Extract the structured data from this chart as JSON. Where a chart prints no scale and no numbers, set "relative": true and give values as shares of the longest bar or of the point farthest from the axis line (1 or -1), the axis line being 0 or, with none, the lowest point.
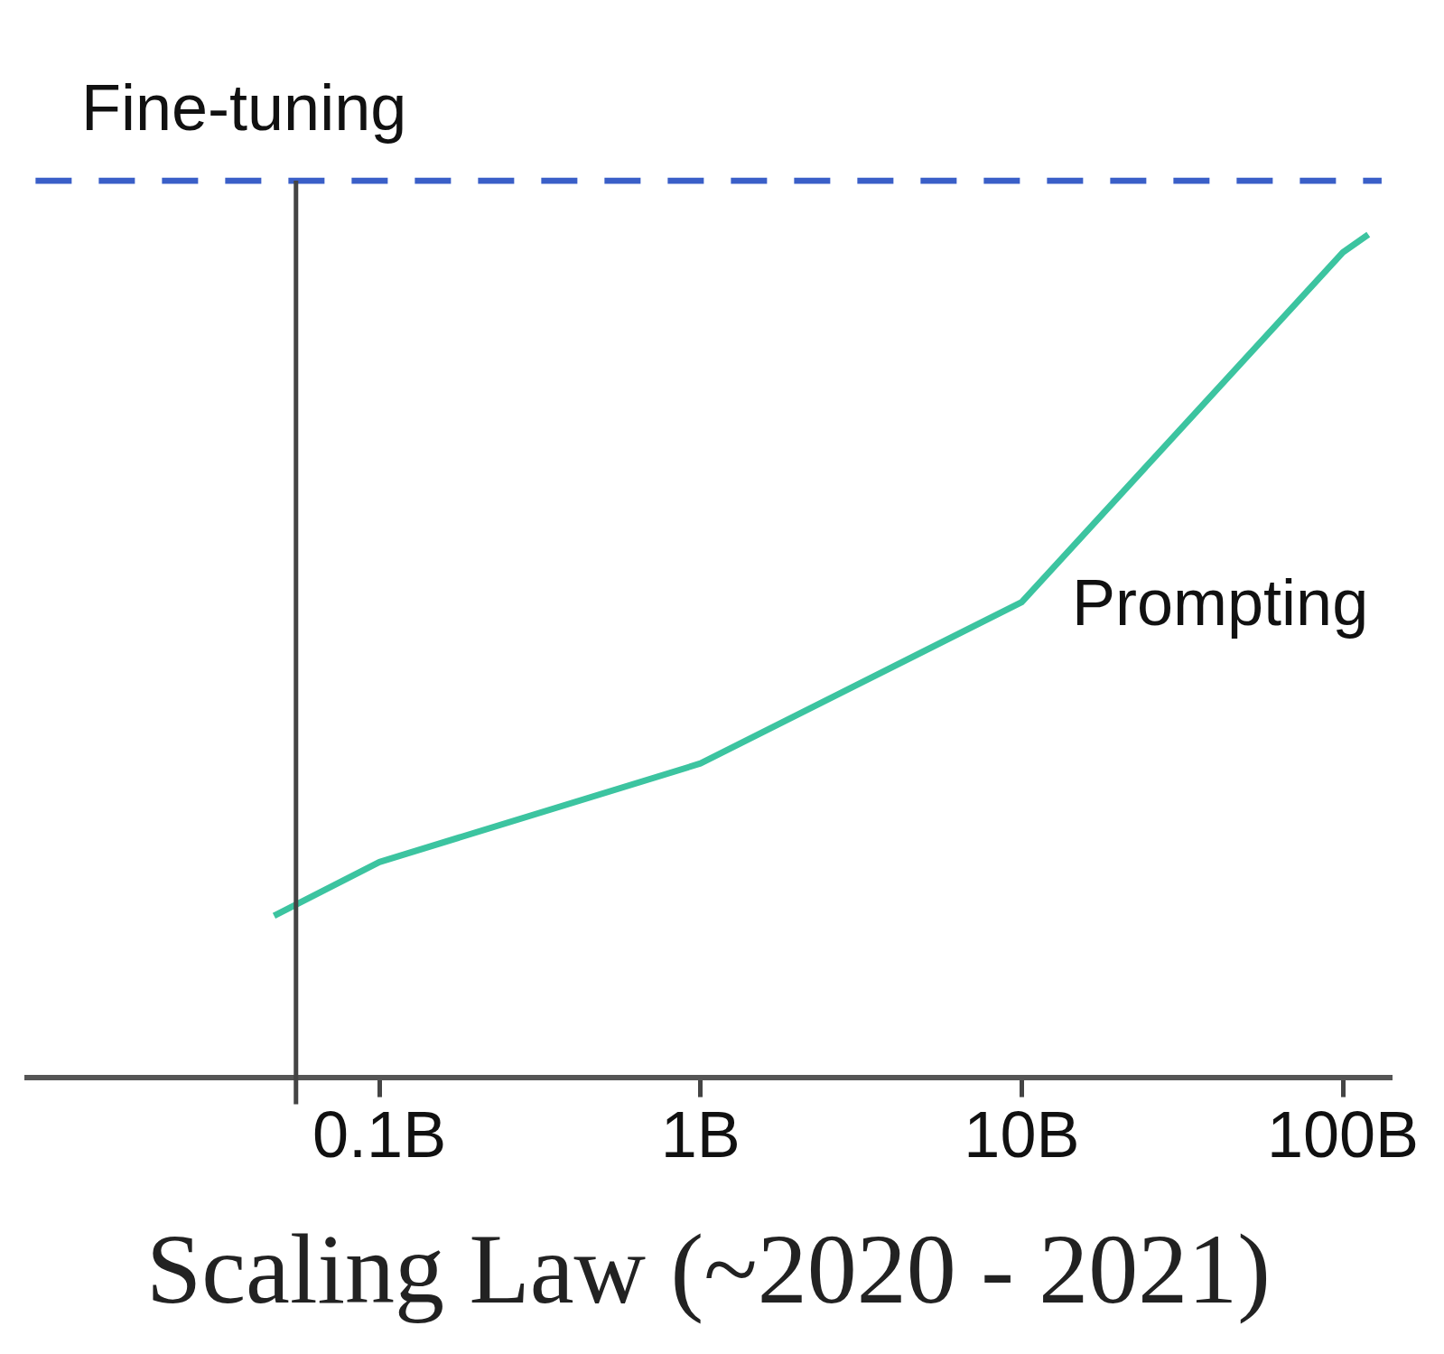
{
  "chart_data": {
    "type": "line",
    "title": "Scaling Law (~2020 - 2021)",
    "relative": true,
    "log": "x",
    "legend": false,
    "grid": false,
    "marker": "none",
    "tick_labels": "x",
    "xlim": [
      0.008,
      140
    ],
    "xticks": [
      {
        "value": 0.1,
        "label": "0.1B"
      },
      {
        "value": 1,
        "label": "1B"
      },
      {
        "value": 10,
        "label": "10B"
      },
      {
        "value": 100,
        "label": "100B"
      }
    ],
    "ref_lines": [
      {
        "axis": "x",
        "value": 0.055,
        "color": "#444444"
      }
    ],
    "series": [
      {
        "name": "Fine-tuning",
        "color": "#3a5fc8",
        "line_style": "dashed",
        "x": [
          0.0085,
          0.1,
          1,
          10,
          100,
          132
        ],
        "values": [
          1,
          1,
          1,
          1,
          1,
          1
        ]
      },
      {
        "name": "Prompting",
        "color": "#3cc4a0",
        "line_style": "solid",
        "x": [
          0.047,
          0.1,
          1,
          10,
          100,
          120
        ],
        "values": [
          0.18,
          0.24,
          0.35,
          0.53,
          0.92,
          0.94
        ]
      }
    ]
  }
}
